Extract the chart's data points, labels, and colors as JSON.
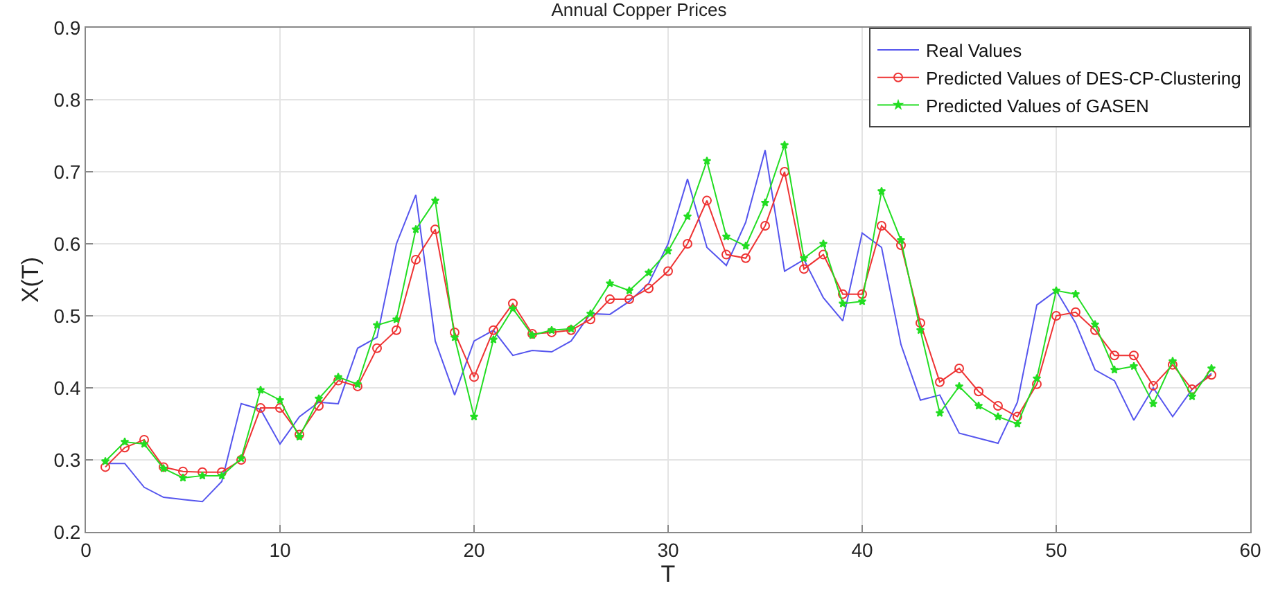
{
  "chart_data": {
    "type": "line",
    "title": "Annual Copper Prices",
    "xlabel": "T",
    "ylabel": "X(T)",
    "x": [
      1,
      2,
      3,
      4,
      5,
      6,
      7,
      8,
      9,
      10,
      11,
      12,
      13,
      14,
      15,
      16,
      17,
      18,
      19,
      20,
      21,
      22,
      23,
      24,
      25,
      26,
      27,
      28,
      29,
      30,
      31,
      32,
      33,
      34,
      35,
      36,
      37,
      38,
      39,
      40,
      41,
      42,
      43,
      44,
      45,
      46,
      47,
      48,
      49,
      50,
      51,
      52,
      53,
      54,
      55,
      56,
      57,
      58
    ],
    "xlim": [
      0,
      60
    ],
    "xticks": [
      0,
      10,
      20,
      30,
      40,
      50,
      60
    ],
    "ylim": [
      0.2,
      0.9
    ],
    "yticks": [
      0.2,
      0.3,
      0.4,
      0.5,
      0.6,
      0.7,
      0.8,
      0.9
    ],
    "grid": true,
    "legend": "top right",
    "series": [
      {
        "name": "Real Values",
        "color": "#5555ee",
        "marker": "none",
        "values": [
          0.295,
          0.295,
          0.262,
          0.248,
          0.245,
          0.242,
          0.27,
          0.378,
          0.37,
          0.322,
          0.36,
          0.38,
          0.378,
          0.455,
          0.47,
          0.6,
          0.668,
          0.465,
          0.39,
          0.465,
          0.48,
          0.445,
          0.452,
          0.45,
          0.465,
          0.503,
          0.502,
          0.52,
          0.545,
          0.6,
          0.69,
          0.595,
          0.57,
          0.63,
          0.73,
          0.562,
          0.578,
          0.525,
          0.493,
          0.615,
          0.595,
          0.46,
          0.383,
          0.39,
          0.337,
          0.33,
          0.323,
          0.38,
          0.515,
          0.535,
          0.49,
          0.425,
          0.41,
          0.355,
          0.4,
          0.36,
          0.398,
          0.42
        ]
      },
      {
        "name": "Predicted Values of DES-CP-Clustering",
        "color": "#ee3333",
        "marker": "circle",
        "values": [
          0.29,
          0.317,
          0.328,
          0.29,
          0.284,
          0.283,
          0.283,
          0.3,
          0.372,
          0.372,
          0.335,
          0.375,
          0.41,
          0.402,
          0.455,
          0.48,
          0.578,
          0.62,
          0.477,
          0.415,
          0.48,
          0.517,
          0.475,
          0.477,
          0.48,
          0.495,
          0.523,
          0.523,
          0.538,
          0.562,
          0.6,
          0.66,
          0.585,
          0.58,
          0.625,
          0.7,
          0.565,
          0.585,
          0.53,
          0.53,
          0.625,
          0.598,
          0.49,
          0.408,
          0.427,
          0.395,
          0.375,
          0.36,
          0.405,
          0.5,
          0.505,
          0.48,
          0.445,
          0.445,
          0.403,
          0.432,
          0.398,
          0.418
        ]
      },
      {
        "name": "Predicted Values of GASEN",
        "color": "#22dd22",
        "marker": "star",
        "values": [
          0.298,
          0.325,
          0.322,
          0.288,
          0.275,
          0.278,
          0.278,
          0.302,
          0.397,
          0.383,
          0.332,
          0.385,
          0.415,
          0.405,
          0.487,
          0.495,
          0.62,
          0.66,
          0.47,
          0.36,
          0.467,
          0.51,
          0.473,
          0.48,
          0.482,
          0.503,
          0.545,
          0.535,
          0.56,
          0.59,
          0.638,
          0.715,
          0.61,
          0.597,
          0.657,
          0.737,
          0.58,
          0.6,
          0.517,
          0.52,
          0.673,
          0.605,
          0.48,
          0.365,
          0.402,
          0.375,
          0.36,
          0.35,
          0.413,
          0.535,
          0.53,
          0.488,
          0.425,
          0.43,
          0.378,
          0.437,
          0.388,
          0.427
        ]
      }
    ]
  }
}
